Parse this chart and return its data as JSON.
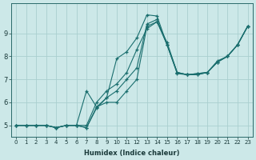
{
  "xlabel": "Humidex (Indice chaleur)",
  "ylabel": "",
  "bg_color": "#cce8e8",
  "grid_color": "#aacfcf",
  "line_color": "#1a6e6e",
  "xlim": [
    -0.5,
    23.5
  ],
  "ylim": [
    4.5,
    10.3
  ],
  "yticks": [
    5,
    6,
    7,
    8,
    9
  ],
  "xticks": [
    0,
    1,
    2,
    3,
    4,
    5,
    6,
    7,
    8,
    9,
    10,
    11,
    12,
    13,
    14,
    15,
    16,
    17,
    18,
    19,
    20,
    21,
    22,
    23
  ],
  "series": [
    {
      "x": [
        0,
        1,
        2,
        3,
        4,
        5,
        6,
        7,
        8,
        9,
        10,
        11,
        12,
        13,
        14,
        15,
        16,
        17,
        18,
        19,
        20,
        21,
        22,
        23
      ],
      "y": [
        5.0,
        5.0,
        5.0,
        5.0,
        4.9,
        5.0,
        5.0,
        4.9,
        5.8,
        6.2,
        7.9,
        8.2,
        8.8,
        9.8,
        9.75,
        8.5,
        7.25,
        7.2,
        7.25,
        7.3,
        7.75,
        8.0,
        8.5,
        9.3
      ]
    },
    {
      "x": [
        0,
        1,
        2,
        3,
        4,
        5,
        6,
        7,
        8,
        9,
        10,
        11,
        12,
        13,
        14,
        15,
        16,
        17,
        18,
        19,
        20,
        21,
        22,
        23
      ],
      "y": [
        5.0,
        5.0,
        5.0,
        5.0,
        4.9,
        5.0,
        5.0,
        6.5,
        5.8,
        6.0,
        6.0,
        6.5,
        7.0,
        9.3,
        9.5,
        8.6,
        7.3,
        7.2,
        7.2,
        7.3,
        7.75,
        8.0,
        8.5,
        9.3
      ]
    },
    {
      "x": [
        0,
        1,
        2,
        3,
        4,
        5,
        6,
        7,
        8,
        9,
        10,
        11,
        12,
        13,
        14,
        15,
        16,
        17,
        18,
        19,
        20,
        21,
        22,
        23
      ],
      "y": [
        5.0,
        5.0,
        5.0,
        5.0,
        4.9,
        5.0,
        5.0,
        5.0,
        6.0,
        6.5,
        6.8,
        7.3,
        8.3,
        9.2,
        9.5,
        8.5,
        7.3,
        7.2,
        7.2,
        7.3,
        7.75,
        8.0,
        8.5,
        9.3
      ]
    },
    {
      "x": [
        0,
        1,
        2,
        3,
        4,
        5,
        6,
        7,
        8,
        9,
        10,
        11,
        12,
        13,
        14,
        15,
        16,
        17,
        18,
        19,
        20,
        21,
        22,
        23
      ],
      "y": [
        5.0,
        5.0,
        5.0,
        5.0,
        4.9,
        5.0,
        5.0,
        4.9,
        5.75,
        6.2,
        6.5,
        7.0,
        7.5,
        9.4,
        9.6,
        8.5,
        7.3,
        7.2,
        7.25,
        7.3,
        7.8,
        8.0,
        8.5,
        9.3
      ]
    }
  ]
}
